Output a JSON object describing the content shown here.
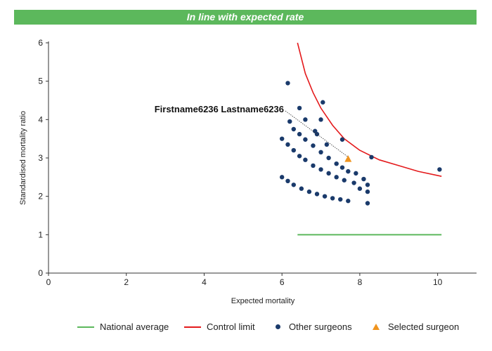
{
  "header": {
    "status_text": "In line with expected rate"
  },
  "colors": {
    "banner": "#5cb85c",
    "national_average": "#5cb85c",
    "control_limit": "#e41a1c",
    "other_surgeons": "#1a3a6b",
    "selected_surgeon": "#f0941e"
  },
  "chart_data": {
    "type": "scatter",
    "title": "",
    "xlabel": "Expected mortality",
    "ylabel": "Standardised mortality ratio",
    "xlim": [
      0,
      11
    ],
    "ylim": [
      0,
      6
    ],
    "xticks": [
      "0",
      "2",
      "4",
      "6",
      "8",
      "10"
    ],
    "yticks": [
      "0",
      "1",
      "2",
      "3",
      "4",
      "5",
      "6"
    ],
    "grid": false,
    "legend_position": "bottom",
    "national_average": {
      "name": "National average",
      "y": 1,
      "x_range": [
        6.4,
        10.1
      ]
    },
    "control_limit": {
      "name": "Control limit",
      "points": [
        [
          6.4,
          6.0
        ],
        [
          6.6,
          5.2
        ],
        [
          6.8,
          4.7
        ],
        [
          7.0,
          4.3
        ],
        [
          7.3,
          3.85
        ],
        [
          7.6,
          3.5
        ],
        [
          8.0,
          3.2
        ],
        [
          8.5,
          2.95
        ],
        [
          9.0,
          2.8
        ],
        [
          9.5,
          2.65
        ],
        [
          10.1,
          2.52
        ]
      ]
    },
    "other_surgeons": {
      "name": "Other surgeons",
      "points": [
        [
          6.15,
          4.95
        ],
        [
          6.45,
          4.3
        ],
        [
          6.6,
          4.0
        ],
        [
          6.85,
          3.7
        ],
        [
          6.9,
          3.62
        ],
        [
          7.05,
          4.45
        ],
        [
          7.0,
          4.0
        ],
        [
          7.15,
          3.35
        ],
        [
          7.55,
          3.48
        ],
        [
          8.3,
          3.02
        ],
        [
          10.05,
          2.7
        ],
        [
          6.2,
          3.95
        ],
        [
          6.3,
          3.75
        ],
        [
          6.45,
          3.62
        ],
        [
          6.6,
          3.48
        ],
        [
          6.8,
          3.32
        ],
        [
          7.0,
          3.15
        ],
        [
          7.2,
          3.0
        ],
        [
          7.4,
          2.85
        ],
        [
          7.55,
          2.75
        ],
        [
          7.7,
          2.65
        ],
        [
          7.9,
          2.6
        ],
        [
          6.0,
          3.5
        ],
        [
          6.15,
          3.35
        ],
        [
          6.3,
          3.2
        ],
        [
          6.45,
          3.05
        ],
        [
          6.6,
          2.95
        ],
        [
          6.8,
          2.8
        ],
        [
          7.0,
          2.7
        ],
        [
          7.2,
          2.6
        ],
        [
          7.4,
          2.5
        ],
        [
          7.6,
          2.42
        ],
        [
          7.85,
          2.35
        ],
        [
          8.1,
          2.45
        ],
        [
          8.2,
          2.3
        ],
        [
          6.0,
          2.5
        ],
        [
          6.15,
          2.4
        ],
        [
          6.3,
          2.3
        ],
        [
          6.5,
          2.2
        ],
        [
          6.7,
          2.12
        ],
        [
          6.9,
          2.06
        ],
        [
          7.1,
          2.0
        ],
        [
          7.3,
          1.95
        ],
        [
          7.5,
          1.92
        ],
        [
          7.7,
          1.88
        ],
        [
          8.0,
          2.2
        ],
        [
          8.2,
          2.12
        ],
        [
          8.2,
          1.82
        ]
      ]
    },
    "selected_surgeon": {
      "name": "Selected surgeon",
      "label": "Firstname6236 Lastname6236",
      "point": [
        7.7,
        2.97
      ]
    }
  }
}
